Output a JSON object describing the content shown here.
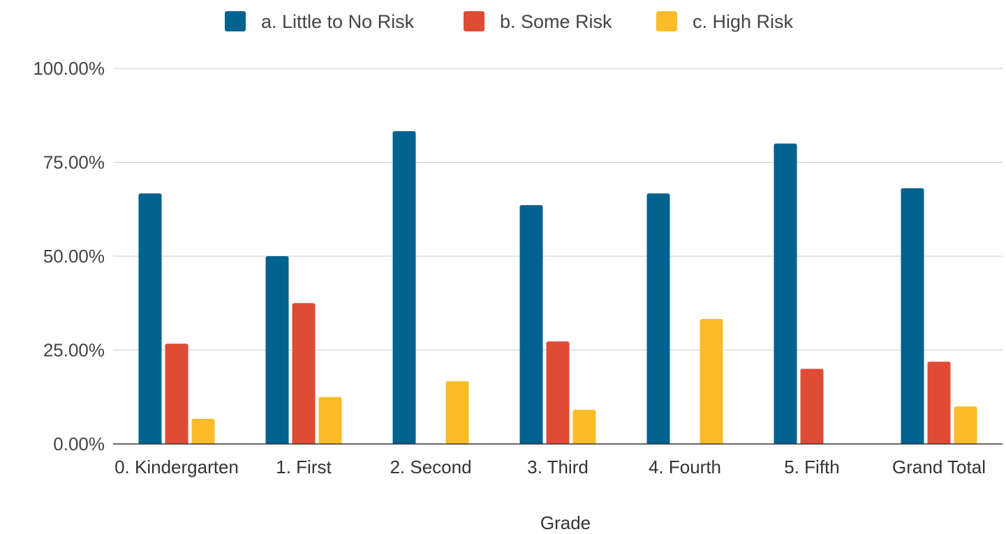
{
  "chart_data": {
    "type": "bar",
    "title": "",
    "xlabel": "Grade",
    "ylabel": "",
    "categories": [
      "0. Kindergarten",
      "1. First",
      "2. Second",
      "3. Third",
      "4. Fourth",
      "5. Fifth",
      "Grand Total"
    ],
    "series": [
      {
        "name": "a. Little to No Risk",
        "color": "#01618f",
        "values": [
          66.7,
          50.0,
          83.3,
          63.6,
          66.7,
          80.0,
          68.1
        ]
      },
      {
        "name": "b. Some Risk",
        "color": "#e04b36",
        "values": [
          26.7,
          37.5,
          0,
          27.3,
          0,
          20.0,
          21.9
        ]
      },
      {
        "name": "c. High Risk",
        "color": "#fbbc2a",
        "values": [
          6.7,
          12.5,
          16.7,
          9.1,
          33.3,
          0,
          10.0
        ]
      }
    ],
    "ylim": [
      0,
      100
    ],
    "yticks": [
      "0.00%",
      "25.00%",
      "50.00%",
      "75.00%",
      "100.00%"
    ],
    "ytick_values": [
      0,
      25,
      50,
      75,
      100
    ],
    "grid": true,
    "legend_position": "top"
  }
}
